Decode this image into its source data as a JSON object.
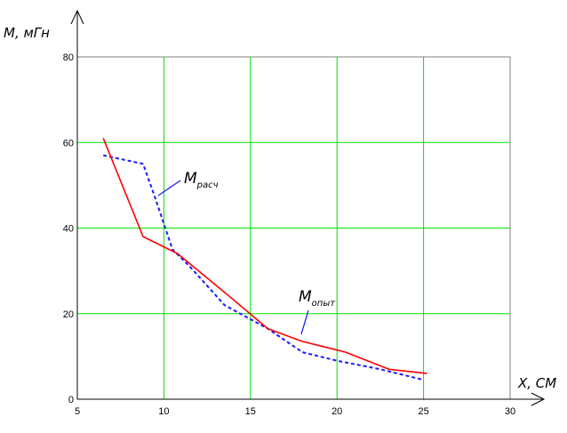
{
  "chart_data": {
    "type": "line",
    "xlabel": "X, СМ",
    "ylabel": "M, мГн",
    "xlim": [
      5,
      30
    ],
    "ylim": [
      0,
      80
    ],
    "x_ticks": [
      "5",
      "10",
      "15",
      "20",
      "25",
      "30"
    ],
    "y_ticks": [
      "0",
      "20",
      "40",
      "60",
      "80"
    ],
    "grid": true,
    "grid_color": "#00e000",
    "series": [
      {
        "name": "M расч",
        "label_main": "M",
        "label_sub": "расч",
        "color": "#1a1aff",
        "style": "dashed",
        "x": [
          6.5,
          8.8,
          9.5,
          10.5,
          11.5,
          13.5,
          16,
          18,
          20,
          22.5,
          25
        ],
        "y": [
          57,
          55,
          47,
          35,
          31,
          22,
          16.5,
          11,
          9,
          7,
          4.5
        ]
      },
      {
        "name": "M опыт",
        "label_main": "M",
        "label_sub": "опыт",
        "color": "#ff0000",
        "style": "solid",
        "x": [
          6.5,
          8.8,
          10.8,
          13.5,
          16,
          18,
          20.5,
          23,
          25.2
        ],
        "y": [
          61,
          38,
          34,
          25,
          16.5,
          13.5,
          11,
          7,
          6
        ]
      }
    ]
  }
}
